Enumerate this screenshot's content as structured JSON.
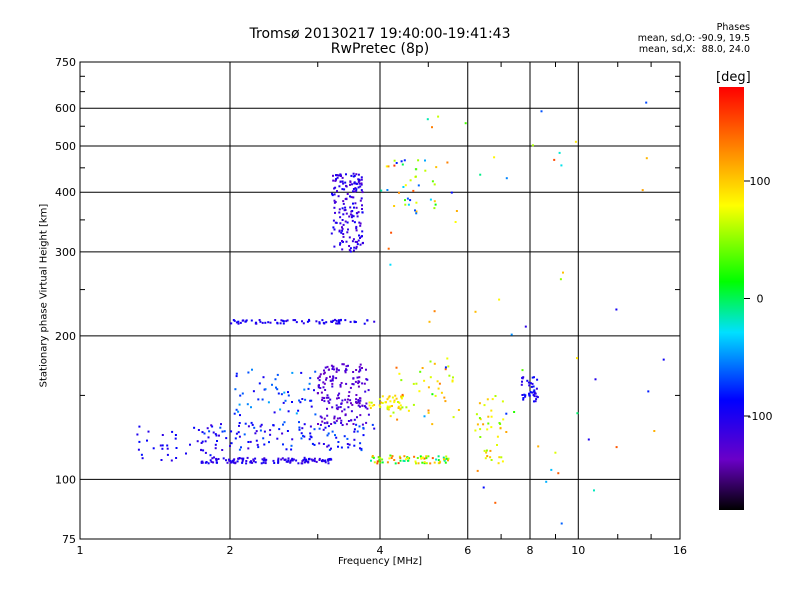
{
  "title_line1": "Tromsø 20130217 19:40:00-19:41:43",
  "title_line2": "RwPretec (8p)",
  "phase_header": "Phases",
  "phase_o": "mean, sd,O: -90.9, 19.5",
  "phase_x": "mean, sd,X:  88.0, 24.0",
  "colorbar": {
    "unit": "[deg]",
    "range": [
      -180,
      180
    ],
    "ticks": [
      100,
      0,
      -100
    ],
    "tick_labels": [
      "100",
      "0",
      "-100"
    ]
  },
  "chart_data": {
    "type": "scatter",
    "xlabel": "Frequency [MHz]",
    "ylabel": "Stationary phase Virtual Height [km]",
    "xscale": "log",
    "yscale": "log",
    "xlim": [
      1,
      16
    ],
    "ylim": [
      75,
      750
    ],
    "x_ticks": [
      1,
      2,
      4,
      6,
      8,
      10,
      16
    ],
    "x_tick_labels": [
      "1",
      "2",
      "4",
      "6",
      "8",
      "10",
      "16"
    ],
    "y_ticks": [
      75,
      100,
      200,
      300,
      400,
      500,
      600,
      750
    ],
    "y_tick_labels": [
      "75",
      "100",
      "200",
      "300",
      "400",
      "500",
      "600",
      "750"
    ],
    "grid": true,
    "clusters": [
      {
        "x": [
          1.75,
          3.2
        ],
        "y": [
          108,
          111
        ],
        "phase": [
          -120,
          -90
        ],
        "n": 130
      },
      {
        "x": [
          1.3,
          1.9
        ],
        "y": [
          108,
          130
        ],
        "phase": [
          -110,
          -80
        ],
        "n": 40
      },
      {
        "x": [
          1.75,
          3.9
        ],
        "y": [
          115,
          132
        ],
        "phase": [
          -120,
          -60
        ],
        "n": 120
      },
      {
        "x": [
          2.0,
          3.0
        ],
        "y": [
          130,
          170
        ],
        "phase": [
          -100,
          -40
        ],
        "n": 60
      },
      {
        "x": [
          3.0,
          3.8
        ],
        "y": [
          130,
          175
        ],
        "phase": [
          -140,
          -110
        ],
        "n": 170
      },
      {
        "x": [
          3.8,
          5.5
        ],
        "y": [
          108,
          112
        ],
        "phase": [
          -20,
          160
        ],
        "n": 70
      },
      {
        "x": [
          3.8,
          4.5
        ],
        "y": [
          140,
          150
        ],
        "phase": [
          60,
          110
        ],
        "n": 40
      },
      {
        "x": [
          4.2,
          5.8
        ],
        "y": [
          130,
          180
        ],
        "phase": [
          50,
          140
        ],
        "n": 40
      },
      {
        "x": [
          2.0,
          3.9
        ],
        "y": [
          212,
          216
        ],
        "phase": [
          -110,
          -90
        ],
        "n": 70
      },
      {
        "x": [
          3.2,
          3.7
        ],
        "y": [
          300,
          440
        ],
        "phase": [
          -130,
          -90
        ],
        "n": 170
      },
      {
        "x": [
          4.0,
          5.2
        ],
        "y": [
          360,
          470
        ],
        "phase": [
          -80,
          160
        ],
        "n": 40
      },
      {
        "x": [
          6.2,
          7.2
        ],
        "y": [
          108,
          150
        ],
        "phase": [
          40,
          120
        ],
        "n": 40
      },
      {
        "x": [
          7.7,
          8.3
        ],
        "y": [
          145,
          165
        ],
        "phase": [
          -110,
          -80
        ],
        "n": 40
      },
      {
        "x": [
          4.0,
          16.0
        ],
        "y": [
          80,
          620
        ],
        "phase": [
          -120,
          160
        ],
        "n": 60
      }
    ]
  }
}
